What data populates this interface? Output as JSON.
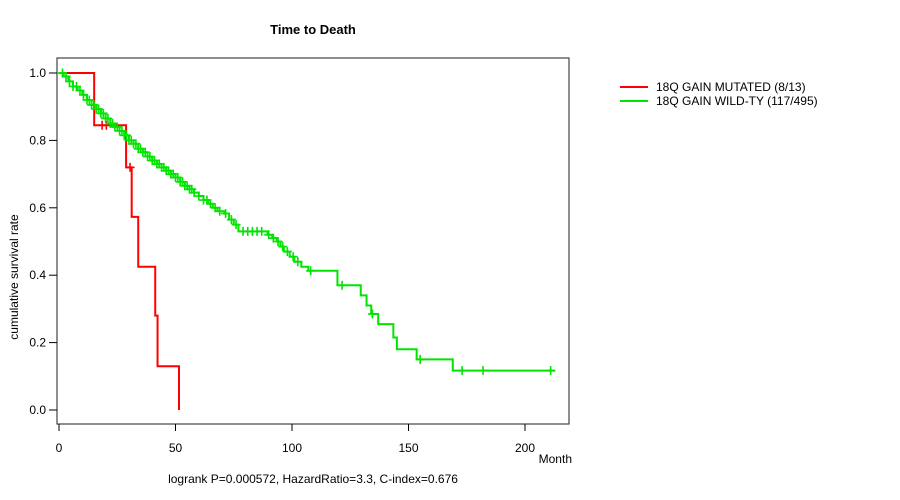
{
  "title": "Time to Death",
  "ylabel": "cumulative survival rate",
  "xlabel": "Month",
  "footer": "logrank P=0.000572, HazardRatio=3.3, C-index=0.676",
  "colors": {
    "mutated": "#ff0000",
    "wildtype": "#00e400",
    "axis": "#444444",
    "tick": "#000000"
  },
  "legend": [
    {
      "label": "18Q GAIN MUTATED (8/13)",
      "color": "#ff0000"
    },
    {
      "label": "18Q GAIN WILD-TY (117/495)",
      "color": "#00e400"
    }
  ],
  "chart_data": {
    "type": "line",
    "subtype": "kaplan-meier-step",
    "title": "Time to Death",
    "xlabel": "Month",
    "ylabel": "cumulative survival rate",
    "xlim": [
      0,
      219
    ],
    "ylim": [
      0.0,
      1.0
    ],
    "xticks": [
      0,
      50,
      100,
      150,
      200
    ],
    "yticks": [
      0.0,
      0.2,
      0.4,
      0.6,
      0.8,
      1.0
    ],
    "grid": false,
    "legend_position": "right-outside",
    "series": [
      {
        "name": "18Q GAIN MUTATED (8/13)",
        "color": "#ff0000",
        "end_month": 51.5,
        "steps": [
          [
            0,
            1.0
          ],
          [
            15.1,
            0.845
          ],
          [
            28.8,
            0.72
          ],
          [
            31.2,
            0.573
          ],
          [
            34,
            0.425
          ],
          [
            41.3,
            0.28
          ],
          [
            42.3,
            0.13
          ],
          [
            51.5,
            0.0
          ]
        ],
        "censors": [
          18.5,
          20.3,
          30.5
        ]
      },
      {
        "name": "18Q GAIN WILD-TY (117/495)",
        "color": "#00e400",
        "end_month": 213,
        "steps": [
          [
            0,
            1.0
          ],
          [
            2,
            0.99
          ],
          [
            4,
            0.975
          ],
          [
            6,
            0.96
          ],
          [
            8,
            0.948
          ],
          [
            10,
            0.935
          ],
          [
            12,
            0.92
          ],
          [
            14,
            0.905
          ],
          [
            16,
            0.893
          ],
          [
            18,
            0.88
          ],
          [
            20,
            0.865
          ],
          [
            22,
            0.85
          ],
          [
            24,
            0.84
          ],
          [
            26,
            0.828
          ],
          [
            28,
            0.815
          ],
          [
            30,
            0.8
          ],
          [
            32,
            0.79
          ],
          [
            34,
            0.775
          ],
          [
            36,
            0.765
          ],
          [
            38,
            0.752
          ],
          [
            40,
            0.74
          ],
          [
            42,
            0.73
          ],
          [
            44,
            0.72
          ],
          [
            46,
            0.71
          ],
          [
            48,
            0.7
          ],
          [
            50,
            0.69
          ],
          [
            52,
            0.677
          ],
          [
            54,
            0.665
          ],
          [
            56,
            0.655
          ],
          [
            58,
            0.645
          ],
          [
            60,
            0.635
          ],
          [
            62,
            0.623
          ],
          [
            64,
            0.612
          ],
          [
            66,
            0.6
          ],
          [
            68,
            0.59
          ],
          [
            71,
            0.583
          ],
          [
            73,
            0.565
          ],
          [
            75,
            0.55
          ],
          [
            77,
            0.53
          ],
          [
            89.5,
            0.52
          ],
          [
            91.5,
            0.51
          ],
          [
            93.5,
            0.5
          ],
          [
            95,
            0.485
          ],
          [
            96.5,
            0.47
          ],
          [
            99,
            0.455
          ],
          [
            101,
            0.44
          ],
          [
            104,
            0.425
          ],
          [
            107,
            0.413
          ],
          [
            119.5,
            0.37
          ],
          [
            129.5,
            0.34
          ],
          [
            132,
            0.31
          ],
          [
            134,
            0.285
          ],
          [
            137,
            0.255
          ],
          [
            143.5,
            0.215
          ],
          [
            145,
            0.18
          ],
          [
            153.5,
            0.15
          ],
          [
            169,
            0.117
          ]
        ],
        "censors": [
          1.5,
          3,
          4.5,
          6,
          7.5,
          9,
          10.5,
          12,
          13,
          14,
          15,
          16,
          17,
          18,
          19,
          20,
          21,
          22,
          23,
          24,
          25,
          26,
          27,
          28,
          29,
          30,
          31,
          32,
          33,
          34,
          35,
          36,
          37,
          38,
          39,
          40,
          41,
          42,
          43,
          44,
          45,
          46,
          47,
          48,
          49,
          50,
          51,
          52,
          53,
          54,
          55,
          56,
          57,
          58,
          60,
          62,
          63.5,
          65,
          67,
          69,
          71.5,
          74,
          76,
          79,
          81,
          83,
          85,
          87,
          90,
          92,
          94,
          96,
          98,
          100.5,
          102.5,
          108,
          121.5,
          134.5,
          155,
          173,
          182,
          211
        ]
      }
    ]
  }
}
